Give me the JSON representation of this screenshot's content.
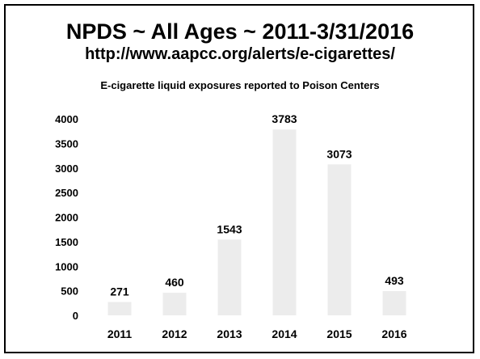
{
  "slide": {
    "title": "NPDS ~ All Ages ~ 2011-3/31/2016",
    "subtitle": "http://www.aapcc.org/alerts/e-cigarettes/"
  },
  "chart_data": {
    "type": "bar",
    "title": "E-cigarette liquid exposures reported to Poison Centers",
    "xlabel": "",
    "ylabel": "",
    "categories": [
      "2011",
      "2012",
      "2013",
      "2014",
      "2015",
      "2016"
    ],
    "values": [
      271,
      460,
      1543,
      3783,
      3073,
      493
    ],
    "ylim": [
      0,
      4000
    ],
    "yticks": [
      0,
      500,
      1000,
      1500,
      2000,
      2500,
      3000,
      3500,
      4000
    ],
    "grid": false,
    "legend": "none",
    "data_labels": true,
    "bar_color": "#ececec",
    "text_color": "#000000"
  }
}
